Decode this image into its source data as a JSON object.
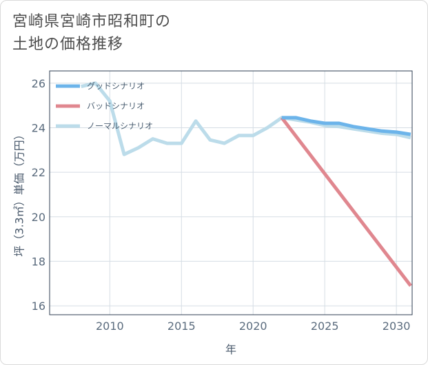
{
  "title_lines": [
    "宮崎県宮崎市昭和町の",
    "土地の価格推移"
  ],
  "chart_data": {
    "type": "line",
    "xlabel": "年",
    "ylabel": "坪（3.3㎡）単価（万円）",
    "xlim": [
      2005.8,
      2031.1
    ],
    "ylim": [
      15.6,
      26.55
    ],
    "x_ticks": [
      2010,
      2015,
      2020,
      2025,
      2030
    ],
    "y_ticks": [
      16,
      18,
      20,
      22,
      24,
      26
    ],
    "grid": true,
    "legend_position": "top-left",
    "series": [
      {
        "name": "グッドシナリオ",
        "color": "#6cb4ea",
        "x": [
          2022,
          2023,
          2024,
          2025,
          2026,
          2027,
          2028,
          2029,
          2030,
          2031
        ],
        "y": [
          24.45,
          24.45,
          24.3,
          24.2,
          24.2,
          24.05,
          23.95,
          23.85,
          23.8,
          23.7
        ]
      },
      {
        "name": "バッドシナリオ",
        "color": "#e0878f",
        "x": [
          2022,
          2031
        ],
        "y": [
          24.45,
          16.9
        ]
      },
      {
        "name": "ノーマルシナリオ",
        "color": "#bcdcea",
        "x": [
          2008,
          2009,
          2010,
          2011,
          2012,
          2013,
          2014,
          2015,
          2016,
          2017,
          2018,
          2019,
          2020,
          2021,
          2022,
          2023,
          2024,
          2025,
          2026,
          2027,
          2028,
          2029,
          2030,
          2031
        ],
        "y": [
          25.85,
          26.0,
          25.2,
          22.8,
          23.1,
          23.5,
          23.3,
          23.3,
          24.3,
          23.45,
          23.3,
          23.65,
          23.65,
          24.0,
          24.45,
          24.35,
          24.25,
          24.1,
          24.05,
          23.95,
          23.85,
          23.75,
          23.7,
          23.55
        ]
      }
    ]
  }
}
